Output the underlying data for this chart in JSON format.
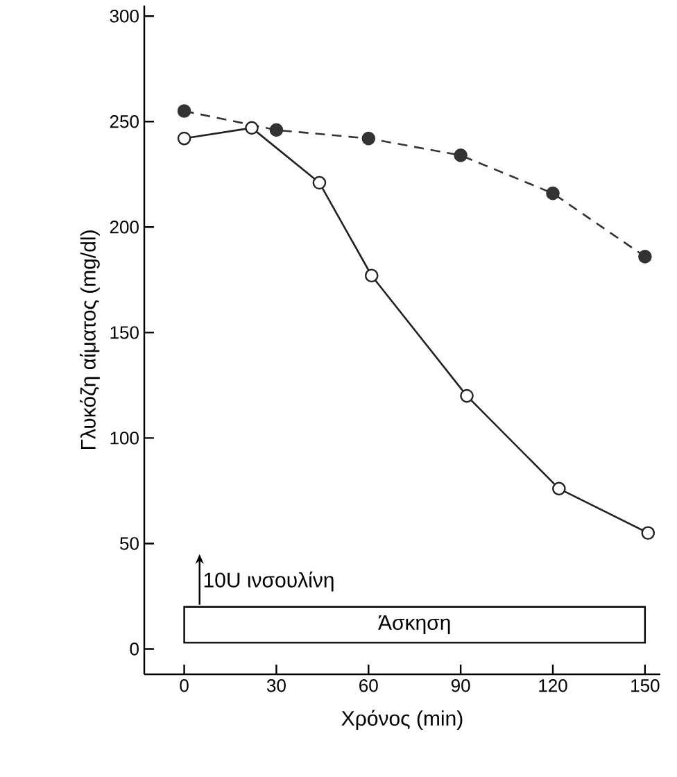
{
  "chart_data": {
    "type": "line",
    "xlabel": "Χρόνος (min)",
    "ylabel": "Γλυκόζη αίματος (mg/dl)",
    "xlim": [
      -13,
      155
    ],
    "xticks": [
      0,
      30,
      60,
      90,
      120,
      150
    ],
    "ylim": [
      -12,
      305
    ],
    "yticks": [
      0,
      50,
      100,
      150,
      200,
      250,
      300
    ],
    "marker": "circle",
    "grid": false,
    "series": [
      {
        "color": "#333333",
        "line_style": "dashed",
        "x": [
          0,
          30,
          60,
          90,
          120,
          150
        ],
        "values": [
          255,
          246,
          242,
          234,
          216,
          186
        ]
      },
      {
        "color": "#222222",
        "line_style": "solid",
        "x": [
          0,
          22,
          44,
          61,
          92,
          122,
          151
        ],
        "values": [
          242,
          247,
          221,
          177,
          120,
          76,
          55
        ]
      }
    ],
    "annotations": [
      "10U ινσουλίνη",
      "Άσκηση"
    ]
  }
}
